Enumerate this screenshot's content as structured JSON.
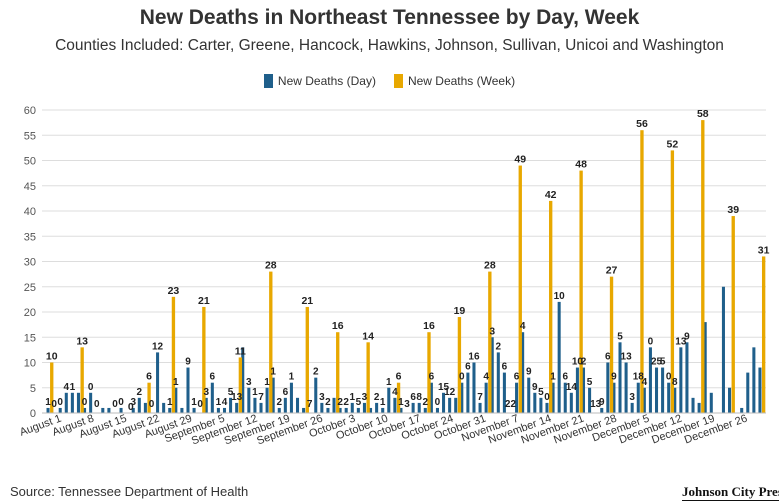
{
  "chart_data": {
    "type": "bar",
    "title": "New Deaths in Northeast Tennessee by Day, Week",
    "subtitle": "Counties Included: Carter, Greene, Hancock, Hawkins, Johnson, Sullivan, Unicoi and Washington",
    "ylim": [
      0,
      60
    ],
    "yticks": [
      0,
      5,
      10,
      15,
      20,
      25,
      30,
      35,
      40,
      45,
      50,
      55,
      60
    ],
    "grid": true,
    "legend_position": "top-center",
    "colors": {
      "day": "#1f5f8b",
      "week": "#e8a800"
    },
    "series": [
      {
        "name": "New Deaths (Day)",
        "values": [
          1,
          0,
          1,
          4,
          4,
          4,
          1,
          4,
          0,
          1,
          1,
          0,
          1,
          0,
          1,
          3,
          2,
          0,
          12,
          2,
          1,
          5,
          1,
          9,
          1,
          0,
          3,
          6,
          1,
          1,
          3,
          2,
          13,
          5,
          3,
          2,
          5,
          7,
          1,
          3,
          6,
          3,
          1,
          0,
          7,
          2,
          1,
          3,
          1,
          1,
          2,
          1,
          2,
          1,
          2,
          1,
          5,
          3,
          1,
          0,
          2,
          2,
          1,
          6,
          1,
          4,
          3,
          3,
          6,
          8,
          10,
          2,
          6,
          15,
          12,
          8,
          0,
          6,
          16,
          7,
          4,
          3,
          2,
          6,
          22,
          6,
          4,
          9,
          9,
          5,
          0,
          1,
          10,
          6,
          14,
          10,
          2,
          6,
          5,
          13,
          9,
          9,
          6,
          5,
          13,
          14,
          3,
          2,
          18,
          4,
          0,
          25,
          5,
          0,
          1,
          8,
          13,
          9
        ]
      },
      {
        "name": "New Deaths (Week)",
        "values": [
          10,
          13,
          0,
          6,
          23,
          21,
          11,
          28,
          21,
          16,
          14,
          6,
          16,
          19,
          28,
          49,
          42,
          48,
          27,
          56,
          52,
          58,
          39,
          31
        ],
        "positions": [
          0,
          5,
          13,
          16,
          20,
          25,
          31,
          36,
          42,
          47,
          52,
          57,
          62,
          67,
          72,
          77,
          82,
          87,
          92,
          97,
          102,
          107,
          112,
          117
        ]
      }
    ],
    "data_labels": {
      "day": [
        {
          "i": 0,
          "v": "1"
        },
        {
          "i": 1,
          "v": "0"
        },
        {
          "i": 2,
          "v": "0"
        },
        {
          "i": 3,
          "v": "4"
        },
        {
          "i": 4,
          "v": "1"
        },
        {
          "i": 6,
          "v": "0"
        },
        {
          "i": 7,
          "v": "0"
        },
        {
          "i": 8,
          "v": "0"
        },
        {
          "i": 11,
          "v": "0"
        },
        {
          "i": 12,
          "v": "0"
        },
        {
          "i": 14,
          "v": "3"
        },
        {
          "i": 15,
          "v": "2"
        },
        {
          "i": 17,
          "v": "0"
        },
        {
          "i": 18,
          "v": "12"
        },
        {
          "i": 20,
          "v": "1"
        },
        {
          "i": 21,
          "v": "1"
        },
        {
          "i": 23,
          "v": "9"
        },
        {
          "i": 24,
          "v": "1"
        },
        {
          "i": 25,
          "v": "0"
        },
        {
          "i": 26,
          "v": "3"
        },
        {
          "i": 27,
          "v": "6"
        },
        {
          "i": 28,
          "v": "1"
        },
        {
          "i": 29,
          "v": "4"
        },
        {
          "i": 30,
          "v": "5"
        },
        {
          "i": 31,
          "v": "13"
        },
        {
          "i": 33,
          "v": "3"
        },
        {
          "i": 34,
          "v": "1"
        },
        {
          "i": 35,
          "v": "7"
        },
        {
          "i": 36,
          "v": "1"
        },
        {
          "i": 37,
          "v": "1"
        },
        {
          "i": 38,
          "v": "2"
        },
        {
          "i": 39,
          "v": "6"
        },
        {
          "i": 40,
          "v": "1"
        },
        {
          "i": 43,
          "v": "7"
        },
        {
          "i": 44,
          "v": "2"
        },
        {
          "i": 45,
          "v": "3"
        },
        {
          "i": 46,
          "v": "2"
        },
        {
          "i": 48,
          "v": "2"
        },
        {
          "i": 49,
          "v": "2"
        },
        {
          "i": 50,
          "v": "1"
        },
        {
          "i": 51,
          "v": "5"
        },
        {
          "i": 52,
          "v": "3"
        },
        {
          "i": 54,
          "v": "2"
        },
        {
          "i": 55,
          "v": "1"
        },
        {
          "i": 56,
          "v": "1"
        },
        {
          "i": 57,
          "v": "4"
        },
        {
          "i": 58,
          "v": "1"
        },
        {
          "i": 59,
          "v": "3"
        },
        {
          "i": 60,
          "v": "6"
        },
        {
          "i": 61,
          "v": "8"
        },
        {
          "i": 62,
          "v": "2"
        },
        {
          "i": 63,
          "v": "6"
        },
        {
          "i": 64,
          "v": "0"
        },
        {
          "i": 65,
          "v": "15"
        },
        {
          "i": 66,
          "v": "12"
        },
        {
          "i": 68,
          "v": "0"
        },
        {
          "i": 69,
          "v": "6"
        },
        {
          "i": 70,
          "v": "16"
        },
        {
          "i": 71,
          "v": "7"
        },
        {
          "i": 72,
          "v": "4"
        },
        {
          "i": 73,
          "v": "3"
        },
        {
          "i": 74,
          "v": "2"
        },
        {
          "i": 75,
          "v": "6"
        },
        {
          "i": 76,
          "v": "22"
        },
        {
          "i": 77,
          "v": "6"
        },
        {
          "i": 78,
          "v": "4"
        },
        {
          "i": 79,
          "v": "9"
        },
        {
          "i": 80,
          "v": "9"
        },
        {
          "i": 81,
          "v": "5"
        },
        {
          "i": 82,
          "v": "0"
        },
        {
          "i": 83,
          "v": "1"
        },
        {
          "i": 84,
          "v": "10"
        },
        {
          "i": 85,
          "v": "6"
        },
        {
          "i": 86,
          "v": "14"
        },
        {
          "i": 87,
          "v": "10"
        },
        {
          "i": 88,
          "v": "2"
        },
        {
          "i": 89,
          "v": "5"
        },
        {
          "i": 90,
          "v": "13"
        },
        {
          "i": 91,
          "v": "9"
        },
        {
          "i": 92,
          "v": "6"
        },
        {
          "i": 93,
          "v": "9"
        },
        {
          "i": 94,
          "v": "5"
        },
        {
          "i": 95,
          "v": "13"
        },
        {
          "i": 96,
          "v": "3"
        },
        {
          "i": 97,
          "v": "18"
        },
        {
          "i": 98,
          "v": "4"
        },
        {
          "i": 99,
          "v": "0"
        },
        {
          "i": 100,
          "v": "25"
        },
        {
          "i": 101,
          "v": "5"
        },
        {
          "i": 102,
          "v": "0"
        },
        {
          "i": 103,
          "v": "8"
        },
        {
          "i": 104,
          "v": "13"
        },
        {
          "i": 105,
          "v": "9"
        }
      ]
    },
    "x_tick_labels": [
      "August 1",
      "August 8",
      "August 15",
      "August 22",
      "August 29",
      "September 5",
      "September 12",
      "September 19",
      "September 26",
      "October 3",
      "October 10",
      "October 17",
      "October 24",
      "October 31",
      "November 7",
      "November 14",
      "November 21",
      "November 28",
      "December 5",
      "December 12",
      "December 19",
      "December 26"
    ]
  },
  "legend": {
    "day_label": "New Deaths (Day)",
    "week_label": "New Deaths (Week)"
  },
  "footer": {
    "source": "Source: Tennessee Department of Health",
    "brand": "Johnson City Press"
  }
}
